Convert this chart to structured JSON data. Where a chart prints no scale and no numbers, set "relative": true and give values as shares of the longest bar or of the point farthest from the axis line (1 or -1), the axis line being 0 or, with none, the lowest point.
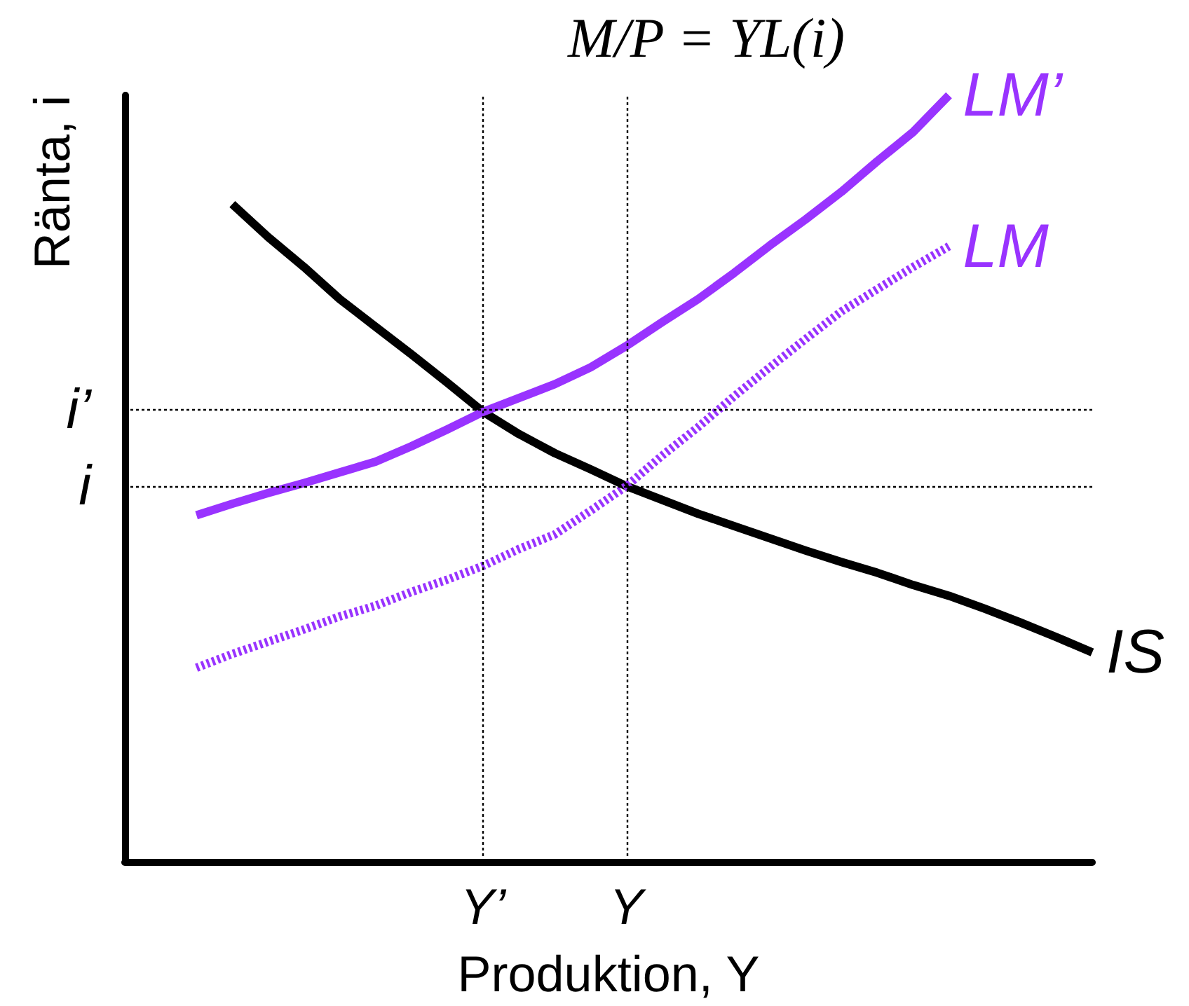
{
  "chart_data": {
    "type": "line",
    "title": "M/P = YL(i)",
    "xlabel": "Produktion, Y",
    "ylabel": "Ränta, i",
    "relative": true,
    "tick_labels": "x",
    "grid": false,
    "legend": false,
    "marker": "none",
    "categories": [
      null,
      null,
      null,
      null,
      null,
      null,
      null,
      null,
      null,
      null,
      "Y’",
      null,
      null,
      null,
      "Y",
      null,
      null,
      null,
      null,
      null,
      null,
      null,
      null,
      null,
      null,
      null,
      null,
      null
    ],
    "series": [
      {
        "name": "IS",
        "color": "#000000",
        "line_style": "solid",
        "values": [
          null,
          null,
          null,
          0.858,
          0.815,
          0.776,
          0.734,
          0.698,
          0.662,
          0.625,
          0.587,
          0.558,
          0.533,
          0.512,
          0.49,
          0.472,
          0.454,
          0.438,
          0.422,
          0.406,
          0.391,
          0.377,
          0.361,
          0.347,
          0.33,
          0.312,
          0.293,
          0.273
        ]
      },
      {
        "name": "LM’",
        "color": "#9933ff",
        "line_style": "solid",
        "values": [
          null,
          null,
          0.452,
          0.467,
          0.481,
          0.494,
          0.508,
          0.522,
          0.542,
          0.564,
          0.587,
          0.605,
          0.623,
          0.645,
          0.673,
          0.704,
          0.734,
          0.768,
          0.804,
          0.838,
          0.874,
          0.914,
          0.952,
          1,
          null,
          null,
          null,
          null
        ]
      },
      {
        "name": "LM",
        "color": "#9933ff",
        "line_style": "dotted",
        "values": [
          null,
          null,
          0.253,
          0.271,
          0.287,
          0.303,
          0.32,
          0.334,
          0.352,
          0.368,
          0.386,
          0.408,
          0.427,
          0.458,
          0.49,
          0.53,
          0.567,
          0.607,
          0.645,
          0.682,
          0.718,
          0.747,
          0.776,
          0.803,
          null,
          null,
          null,
          null
        ]
      }
    ],
    "ref_lines": [
      {
        "axis": "y",
        "value": 0.587,
        "label": "i’",
        "line_style": "dotted",
        "color": "#000000"
      },
      {
        "axis": "y",
        "value": 0.49,
        "label": "i",
        "line_style": "dotted",
        "color": "#000000"
      },
      {
        "axis": "x",
        "value": "Y’",
        "line_style": "dotted",
        "color": "#000000"
      },
      {
        "axis": "x",
        "value": "Y",
        "line_style": "dotted",
        "color": "#000000"
      }
    ]
  }
}
